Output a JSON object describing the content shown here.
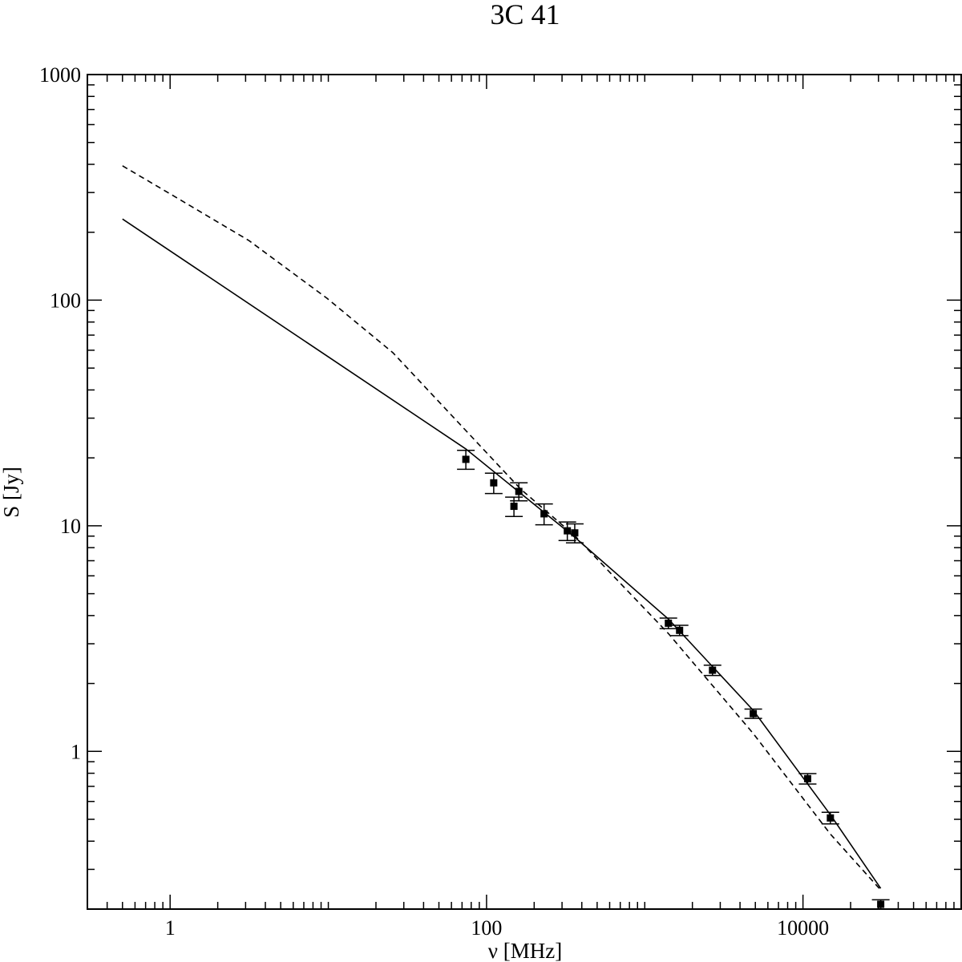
{
  "chart_data": {
    "type": "scatter",
    "title": "3C 41",
    "x_label": "ν [MHz]",
    "y_label": "S [Jy]",
    "xscale": "log",
    "yscale": "log",
    "xlim": [
      0.3,
      100000
    ],
    "ylim": [
      0.2,
      1000
    ],
    "xticks": [
      1,
      100,
      10000
    ],
    "xminorticks": [
      0.3,
      0.4,
      0.5,
      0.6,
      0.7,
      0.8,
      0.9,
      2,
      3,
      4,
      5,
      6,
      7,
      8,
      9,
      10,
      20,
      30,
      40,
      50,
      60,
      70,
      80,
      90,
      200,
      300,
      400,
      500,
      600,
      700,
      800,
      900,
      1000,
      2000,
      3000,
      4000,
      5000,
      6000,
      7000,
      8000,
      9000,
      20000,
      30000,
      40000,
      50000,
      60000,
      70000,
      80000,
      90000
    ],
    "yticks": [
      1,
      10,
      100,
      1000
    ],
    "yminorticks": [
      0.2,
      0.3,
      0.4,
      0.5,
      0.6,
      0.7,
      0.8,
      0.9,
      2,
      3,
      4,
      5,
      6,
      7,
      8,
      9,
      20,
      30,
      40,
      50,
      60,
      70,
      80,
      90,
      200,
      300,
      400,
      500,
      600,
      700,
      800,
      900
    ],
    "series": [
      {
        "kind": "points",
        "color": "#000000",
        "x": [
          74,
          111,
          149,
          160,
          231,
          324,
          361,
          1410,
          1660,
          2680,
          4850,
          10700,
          14900,
          31000
        ],
        "values": [
          19.7,
          15.5,
          12.2,
          14.2,
          11.3,
          9.5,
          9.3,
          3.7,
          3.44,
          2.29,
          1.47,
          0.757,
          0.507,
          0.21
        ],
        "errors": [
          1.9,
          1.6,
          1.2,
          1.3,
          1.2,
          0.9,
          0.9,
          0.2,
          0.18,
          0.12,
          0.07,
          0.04,
          0.03,
          0.01
        ]
      },
      {
        "kind": "line",
        "dash": false,
        "color": "#000000",
        "x": [
          0.5,
          74,
          361,
          1410,
          4850,
          14900,
          31000
        ],
        "values": [
          229,
          21.9,
          8.9,
          3.86,
          1.52,
          0.524,
          0.247
        ]
      },
      {
        "kind": "line",
        "dash": true,
        "color": "#000000",
        "x": [
          0.5,
          1,
          3.14,
          9.8,
          25.6,
          165,
          361,
          1410,
          4850,
          14900,
          31000
        ],
        "values": [
          394,
          296,
          184,
          102,
          58.5,
          14.5,
          9.04,
          3.33,
          1.2,
          0.43,
          0.243
        ]
      }
    ]
  }
}
